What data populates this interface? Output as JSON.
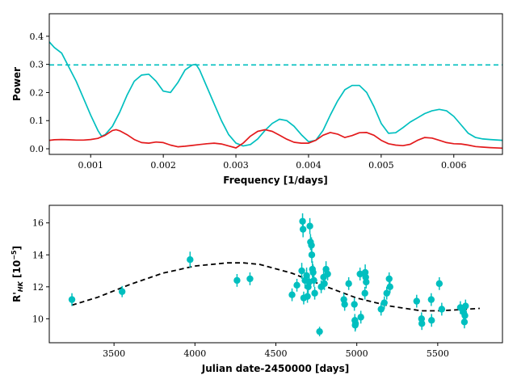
{
  "colors": {
    "cyan": "#00BFBF",
    "red": "#E31A1C",
    "black": "#000000"
  },
  "chart_data": [
    {
      "type": "line",
      "title": "",
      "xlabel": "Frequency [1/days]",
      "ylabel": "Power",
      "xlim": [
        0.00043,
        0.00667
      ],
      "ylim": [
        -0.02,
        0.48
      ],
      "xticks": [
        0.001,
        0.002,
        0.003,
        0.004,
        0.005,
        0.006
      ],
      "xtick_labels": [
        "0.001",
        "0.002",
        "0.003",
        "0.004",
        "0.005",
        "0.006"
      ],
      "yticks": [
        0.0,
        0.1,
        0.2,
        0.3,
        0.4
      ],
      "ytick_labels": [
        "0.0",
        "0.1",
        "0.2",
        "0.3",
        "0.4"
      ],
      "grid": false,
      "threshold": {
        "value": 0.298,
        "style": "dashed",
        "color": "#00BFBF"
      },
      "series": [
        {
          "color": "#00BFBF",
          "x": [
            0.00043,
            0.0005,
            0.0006,
            0.0007,
            0.0008,
            0.0009,
            0.001,
            0.0011,
            0.00115,
            0.0012,
            0.0013,
            0.0014,
            0.0015,
            0.0016,
            0.0017,
            0.0018,
            0.0019,
            0.002,
            0.0021,
            0.0022,
            0.0023,
            0.0024,
            0.00245,
            0.0025,
            0.0026,
            0.0027,
            0.0028,
            0.0029,
            0.003,
            0.0031,
            0.0032,
            0.0033,
            0.0034,
            0.0035,
            0.0036,
            0.0037,
            0.0038,
            0.0039,
            0.004,
            0.0041,
            0.0042,
            0.0043,
            0.0044,
            0.0045,
            0.0046,
            0.0047,
            0.0048,
            0.0049,
            0.005,
            0.0051,
            0.0052,
            0.0053,
            0.0054,
            0.0055,
            0.0056,
            0.0057,
            0.0058,
            0.0059,
            0.006,
            0.0061,
            0.0062,
            0.0063,
            0.0064,
            0.0065,
            0.00667
          ],
          "y": [
            0.38,
            0.36,
            0.34,
            0.29,
            0.24,
            0.18,
            0.12,
            0.065,
            0.045,
            0.05,
            0.08,
            0.13,
            0.19,
            0.24,
            0.262,
            0.265,
            0.24,
            0.205,
            0.2,
            0.235,
            0.28,
            0.298,
            0.3,
            0.28,
            0.22,
            0.16,
            0.1,
            0.05,
            0.02,
            0.01,
            0.015,
            0.035,
            0.065,
            0.09,
            0.105,
            0.1,
            0.08,
            0.05,
            0.025,
            0.03,
            0.065,
            0.12,
            0.17,
            0.21,
            0.225,
            0.225,
            0.2,
            0.15,
            0.09,
            0.055,
            0.057,
            0.075,
            0.095,
            0.11,
            0.125,
            0.135,
            0.14,
            0.135,
            0.115,
            0.085,
            0.055,
            0.04,
            0.035,
            0.033,
            0.03
          ]
        },
        {
          "color": "#E31A1C",
          "x": [
            0.00043,
            0.0005,
            0.0006,
            0.0007,
            0.0008,
            0.0009,
            0.001,
            0.0011,
            0.0012,
            0.0013,
            0.00135,
            0.0014,
            0.0015,
            0.0016,
            0.0017,
            0.0018,
            0.0019,
            0.002,
            0.0021,
            0.0022,
            0.0023,
            0.0024,
            0.0025,
            0.0026,
            0.0027,
            0.0028,
            0.0029,
            0.003,
            0.0031,
            0.0032,
            0.0033,
            0.0034,
            0.0035,
            0.0036,
            0.0037,
            0.0038,
            0.0039,
            0.004,
            0.0041,
            0.0042,
            0.0043,
            0.0044,
            0.0045,
            0.0046,
            0.0047,
            0.0048,
            0.0049,
            0.005,
            0.0051,
            0.0052,
            0.0053,
            0.0054,
            0.0055,
            0.0056,
            0.0057,
            0.0058,
            0.0059,
            0.006,
            0.0061,
            0.0062,
            0.0063,
            0.0064,
            0.0065,
            0.00667
          ],
          "y": [
            0.03,
            0.032,
            0.033,
            0.032,
            0.031,
            0.031,
            0.033,
            0.037,
            0.048,
            0.065,
            0.068,
            0.064,
            0.05,
            0.033,
            0.022,
            0.02,
            0.024,
            0.022,
            0.013,
            0.007,
            0.009,
            0.012,
            0.015,
            0.018,
            0.02,
            0.017,
            0.01,
            0.003,
            0.02,
            0.045,
            0.062,
            0.068,
            0.062,
            0.048,
            0.034,
            0.023,
            0.02,
            0.02,
            0.03,
            0.048,
            0.058,
            0.052,
            0.04,
            0.047,
            0.057,
            0.058,
            0.048,
            0.03,
            0.018,
            0.013,
            0.011,
            0.016,
            0.03,
            0.04,
            0.038,
            0.03,
            0.022,
            0.018,
            0.017,
            0.013,
            0.008,
            0.006,
            0.004,
            0.002
          ]
        }
      ]
    },
    {
      "type": "scatter",
      "title": "",
      "xlabel": "Julian date-2450000 [days]",
      "ylabel": "R'_HK [10^-5]",
      "xlim": [
        3100,
        5900
      ],
      "ylim": [
        8.5,
        17.1
      ],
      "xticks": [
        3500,
        4000,
        4500,
        5000,
        5500
      ],
      "xtick_labels": [
        "3500",
        "4000",
        "4500",
        "5000",
        "5500"
      ],
      "yticks": [
        10,
        12,
        14,
        16
      ],
      "ytick_labels": [
        "10",
        "12",
        "14",
        "16"
      ],
      "grid": false,
      "marker_color": "#00BFBF",
      "points": [
        {
          "x": 3240,
          "y": 11.2,
          "err": 0.4
        },
        {
          "x": 3550,
          "y": 11.7,
          "err": 0.35
        },
        {
          "x": 3970,
          "y": 13.7,
          "err": 0.5
        },
        {
          "x": 4260,
          "y": 12.4,
          "err": 0.4
        },
        {
          "x": 4340,
          "y": 12.5,
          "err": 0.4
        },
        {
          "x": 4600,
          "y": 11.5,
          "err": 0.4
        },
        {
          "x": 4630,
          "y": 12.1,
          "err": 0.4
        },
        {
          "x": 4660,
          "y": 13.0,
          "err": 0.5
        },
        {
          "x": 4665,
          "y": 16.1,
          "err": 0.5
        },
        {
          "x": 4668,
          "y": 15.6,
          "err": 0.5
        },
        {
          "x": 4672,
          "y": 11.3,
          "err": 0.4
        },
        {
          "x": 4680,
          "y": 12.4,
          "err": 0.5
        },
        {
          "x": 4690,
          "y": 12.7,
          "err": 0.5
        },
        {
          "x": 4695,
          "y": 11.4,
          "err": 0.4
        },
        {
          "x": 4700,
          "y": 12.0,
          "err": 0.4
        },
        {
          "x": 4706,
          "y": 12.3,
          "err": 0.5
        },
        {
          "x": 4710,
          "y": 15.8,
          "err": 0.5
        },
        {
          "x": 4714,
          "y": 14.8,
          "err": 0.5
        },
        {
          "x": 4720,
          "y": 14.6,
          "err": 0.5
        },
        {
          "x": 4722,
          "y": 14.0,
          "err": 0.5
        },
        {
          "x": 4726,
          "y": 13.1,
          "err": 0.5
        },
        {
          "x": 4730,
          "y": 12.9,
          "err": 0.5
        },
        {
          "x": 4735,
          "y": 12.4,
          "err": 0.4
        },
        {
          "x": 4740,
          "y": 11.6,
          "err": 0.4
        },
        {
          "x": 4770,
          "y": 9.2,
          "err": 0.3
        },
        {
          "x": 4780,
          "y": 12.0,
          "err": 0.4
        },
        {
          "x": 4795,
          "y": 12.6,
          "err": 0.4
        },
        {
          "x": 4800,
          "y": 12.2,
          "err": 0.4
        },
        {
          "x": 4810,
          "y": 13.1,
          "err": 0.5
        },
        {
          "x": 4820,
          "y": 12.8,
          "err": 0.4
        },
        {
          "x": 4920,
          "y": 11.2,
          "err": 0.4
        },
        {
          "x": 4925,
          "y": 10.9,
          "err": 0.4
        },
        {
          "x": 4950,
          "y": 12.2,
          "err": 0.4
        },
        {
          "x": 4985,
          "y": 10.9,
          "err": 0.4
        },
        {
          "x": 4988,
          "y": 9.9,
          "err": 0.4
        },
        {
          "x": 4990,
          "y": 9.6,
          "err": 0.4
        },
        {
          "x": 4992,
          "y": 9.7,
          "err": 0.4
        },
        {
          "x": 5020,
          "y": 12.8,
          "err": 0.4
        },
        {
          "x": 5025,
          "y": 10.1,
          "err": 0.4
        },
        {
          "x": 5050,
          "y": 11.6,
          "err": 0.4
        },
        {
          "x": 5052,
          "y": 12.9,
          "err": 0.5
        },
        {
          "x": 5055,
          "y": 12.6,
          "err": 0.5
        },
        {
          "x": 5058,
          "y": 12.3,
          "err": 0.4
        },
        {
          "x": 5150,
          "y": 10.6,
          "err": 0.4
        },
        {
          "x": 5170,
          "y": 11.0,
          "err": 0.4
        },
        {
          "x": 5185,
          "y": 11.6,
          "err": 0.4
        },
        {
          "x": 5200,
          "y": 12.5,
          "err": 0.4
        },
        {
          "x": 5205,
          "y": 12.0,
          "err": 0.4
        },
        {
          "x": 5370,
          "y": 11.1,
          "err": 0.4
        },
        {
          "x": 5400,
          "y": 10.0,
          "err": 0.4
        },
        {
          "x": 5402,
          "y": 9.7,
          "err": 0.4
        },
        {
          "x": 5460,
          "y": 11.2,
          "err": 0.4
        },
        {
          "x": 5462,
          "y": 9.9,
          "err": 0.4
        },
        {
          "x": 5510,
          "y": 12.2,
          "err": 0.4
        },
        {
          "x": 5525,
          "y": 10.6,
          "err": 0.4
        },
        {
          "x": 5640,
          "y": 10.7,
          "err": 0.4
        },
        {
          "x": 5660,
          "y": 10.4,
          "err": 0.4
        },
        {
          "x": 5665,
          "y": 9.8,
          "err": 0.4
        },
        {
          "x": 5668,
          "y": 10.2,
          "err": 0.4
        },
        {
          "x": 5672,
          "y": 10.8,
          "err": 0.4
        }
      ],
      "fit": {
        "style": "dashed",
        "color": "#000000",
        "x": [
          3240,
          3400,
          3600,
          3800,
          4000,
          4200,
          4300,
          4400,
          4600,
          4800,
          5000,
          5200,
          5400,
          5500,
          5600,
          5760
        ],
        "y": [
          10.85,
          11.35,
          12.15,
          12.85,
          13.3,
          13.5,
          13.5,
          13.4,
          12.85,
          12.05,
          11.3,
          10.8,
          10.5,
          10.5,
          10.55,
          10.65
        ]
      }
    }
  ]
}
